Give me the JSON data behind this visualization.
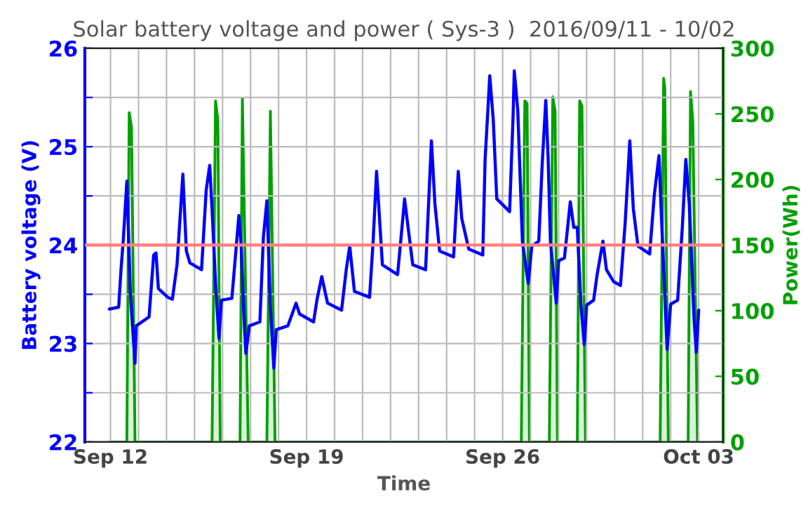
{
  "chart_data": {
    "type": "line",
    "title": "Solar battery voltage and power ( Sys-3 )  2016/09/11 - 10/02",
    "xlabel": "Time",
    "ylabel": "Battery voltage (V)",
    "y2label": "Power(Wh)",
    "xlim": [
      "2016-09-11T02:00",
      "2016-10-03T21:00"
    ],
    "xticks": [
      {
        "value": "2016-09-12",
        "label": "Sep 12"
      },
      {
        "value": "2016-09-13",
        "label": null
      },
      {
        "value": "2016-09-14",
        "label": null
      },
      {
        "value": "2016-09-15",
        "label": null
      },
      {
        "value": "2016-09-16",
        "label": null
      },
      {
        "value": "2016-09-17",
        "label": null
      },
      {
        "value": "2016-09-18",
        "label": null
      },
      {
        "value": "2016-09-19",
        "label": "Sep 19"
      },
      {
        "value": "2016-09-20",
        "label": null
      },
      {
        "value": "2016-09-21",
        "label": null
      },
      {
        "value": "2016-09-22",
        "label": null
      },
      {
        "value": "2016-09-23",
        "label": null
      },
      {
        "value": "2016-09-24",
        "label": null
      },
      {
        "value": "2016-09-25",
        "label": null
      },
      {
        "value": "2016-09-26",
        "label": "Sep 26"
      },
      {
        "value": "2016-09-27",
        "label": null
      },
      {
        "value": "2016-09-28",
        "label": null
      },
      {
        "value": "2016-09-29",
        "label": null
      },
      {
        "value": "2016-09-30",
        "label": null
      },
      {
        "value": "2016-10-01",
        "label": null
      },
      {
        "value": "2016-10-02",
        "label": null
      },
      {
        "value": "2016-10-03",
        "label": "Oct 03"
      }
    ],
    "ylim": [
      22,
      26
    ],
    "yticks": [
      22,
      {
        "value": 22.5,
        "label": null
      },
      23,
      {
        "value": 23.5,
        "label": null
      },
      24,
      {
        "value": 24.5,
        "label": null
      },
      25,
      {
        "value": 25.5,
        "label": null
      },
      26
    ],
    "y2lim": [
      0,
      300
    ],
    "y2ticks": [
      0,
      50,
      100,
      150,
      200,
      250,
      300
    ],
    "grid": true,
    "legend": false,
    "ref_lines": [
      {
        "axis": "y",
        "value": 24,
        "label": null,
        "color": "#ff8080"
      }
    ],
    "series": [
      {
        "color": "#0000ff",
        "x": [
          "2016-09-11T23:00",
          "2016-09-12T07:00",
          "2016-09-12T09:00",
          "2016-09-12T11:00",
          "2016-09-12T14:00",
          "2016-09-12T17:00",
          "2016-09-12T21:00",
          "2016-09-12T22:00",
          "2016-09-13T09:00",
          "2016-09-13T13:00",
          "2016-09-13T15:00",
          "2016-09-13T17:00",
          "2016-09-14T01:00",
          "2016-09-14T05:00",
          "2016-09-14T09:00",
          "2016-09-14T14:00",
          "2016-09-14T17:00",
          "2016-09-14T20:00",
          "2016-09-15T06:00",
          "2016-09-15T10:00",
          "2016-09-15T13:00",
          "2016-09-15T15:00",
          "2016-09-15T18:00",
          "2016-09-15T21:00",
          "2016-09-15T23:00",
          "2016-09-16T08:00",
          "2016-09-16T14:00",
          "2016-09-16T16:00",
          "2016-09-16T18:00",
          "2016-09-16T20:00",
          "2016-09-16T23:00",
          "2016-09-17T08:00",
          "2016-09-17T11:00",
          "2016-09-17T14:00",
          "2016-09-17T17:00",
          "2016-09-17T20:00",
          "2016-09-17T22:00",
          "2016-09-18T08:00",
          "2016-09-18T15:00",
          "2016-09-18T18:00",
          "2016-09-19T06:00",
          "2016-09-19T09:00",
          "2016-09-19T13:00",
          "2016-09-19T18:00",
          "2016-09-20T06:00",
          "2016-09-20T10:00",
          "2016-09-20T13:00",
          "2016-09-20T17:00",
          "2016-09-21T06:00",
          "2016-09-21T09:00",
          "2016-09-21T12:00",
          "2016-09-21T14:00",
          "2016-09-21T17:00",
          "2016-09-22T06:00",
          "2016-09-22T09:00",
          "2016-09-22T12:00",
          "2016-09-22T15:00",
          "2016-09-22T19:00",
          "2016-09-23T06:00",
          "2016-09-23T11:00",
          "2016-09-23T14:00",
          "2016-09-23T18:00",
          "2016-09-24T06:00",
          "2016-09-24T10:00",
          "2016-09-24T13:00",
          "2016-09-24T19:00",
          "2016-09-25T07:00",
          "2016-09-25T09:00",
          "2016-09-25T13:00",
          "2016-09-25T16:00",
          "2016-09-25T19:00",
          "2016-09-26T06:00",
          "2016-09-26T09:00",
          "2016-09-26T10:00",
          "2016-09-26T13:00",
          "2016-09-26T17:00",
          "2016-09-26T22:00",
          "2016-09-27T01:00",
          "2016-09-27T07:00",
          "2016-09-27T10:00",
          "2016-09-27T13:00",
          "2016-09-27T15:00",
          "2016-09-27T17:00",
          "2016-09-27T22:00",
          "2016-09-28T00:00",
          "2016-09-28T05:00",
          "2016-09-28T10:00",
          "2016-09-28T13:00",
          "2016-09-28T16:00",
          "2016-09-28T19:00",
          "2016-09-28T22:00",
          "2016-09-29T00:00",
          "2016-09-29T06:00",
          "2016-09-29T09:00",
          "2016-09-29T14:00",
          "2016-09-29T17:00",
          "2016-09-29T23:00",
          "2016-09-30T05:00",
          "2016-09-30T09:00",
          "2016-09-30T13:00",
          "2016-09-30T16:00",
          "2016-09-30T20:00",
          "2016-10-01T06:00",
          "2016-10-01T10:00",
          "2016-10-01T14:00",
          "2016-10-01T16:00",
          "2016-10-01T21:00",
          "2016-10-02T00:00",
          "2016-10-02T06:00",
          "2016-10-02T10:00",
          "2016-10-02T13:00",
          "2016-10-02T16:00",
          "2016-10-02T20:00",
          "2016-10-02T22:00",
          "2016-10-03T00:00"
        ],
        "values": [
          23.35,
          23.37,
          23.75,
          24.06,
          24.65,
          23.51,
          22.8,
          23.18,
          23.27,
          23.9,
          23.92,
          23.56,
          23.47,
          23.45,
          23.8,
          24.72,
          23.94,
          23.82,
          23.75,
          24.56,
          24.81,
          24.37,
          23.61,
          23.05,
          23.44,
          23.46,
          24.3,
          23.99,
          23.37,
          22.9,
          23.18,
          23.22,
          24.08,
          24.45,
          23.37,
          22.75,
          23.14,
          23.18,
          23.41,
          23.3,
          23.22,
          23.45,
          23.68,
          23.41,
          23.34,
          23.75,
          23.99,
          23.53,
          23.47,
          24.03,
          24.75,
          24.37,
          23.8,
          23.7,
          24.08,
          24.47,
          24.18,
          23.8,
          23.75,
          25.06,
          24.42,
          23.94,
          23.88,
          24.75,
          24.27,
          23.96,
          23.9,
          24.87,
          25.72,
          25.27,
          24.47,
          24.34,
          25.32,
          25.77,
          25.37,
          24.03,
          23.61,
          23.99,
          24.04,
          24.84,
          25.47,
          24.89,
          24.03,
          23.41,
          23.84,
          23.87,
          24.44,
          24.18,
          24.18,
          23.41,
          22.99,
          23.39,
          23.44,
          23.7,
          24.04,
          23.75,
          23.63,
          23.59,
          24.22,
          25.06,
          24.37,
          23.99,
          23.91,
          24.51,
          24.91,
          24.32,
          22.94,
          23.4,
          23.44,
          24.18,
          24.87,
          24.41,
          23.27,
          22.91,
          23.34
        ]
      },
      {
        "type": "area",
        "axis": "y2",
        "color": "#00a000",
        "x": [
          "2016-09-11T23:00",
          "2016-09-12T14:00",
          "2016-09-12T16:00",
          "2016-09-12T18:00",
          "2016-09-12T21:00",
          "2016-09-15T15:00",
          "2016-09-15T18:00",
          "2016-09-15T20:00",
          "2016-09-15T22:00",
          "2016-09-16T15:00",
          "2016-09-16T17:00",
          "2016-09-16T22:00",
          "2016-09-17T14:00",
          "2016-09-17T17:00",
          "2016-09-17T21:00",
          "2016-09-26T16:00",
          "2016-09-26T19:00",
          "2016-09-26T21:00",
          "2016-09-26T23:00",
          "2016-09-27T16:00",
          "2016-09-27T19:00",
          "2016-09-27T21:00",
          "2016-09-27T23:00",
          "2016-09-28T16:00",
          "2016-09-28T18:00",
          "2016-09-28T20:00",
          "2016-09-28T23:00",
          "2016-10-01T15:00",
          "2016-10-01T18:00",
          "2016-10-01T19:00",
          "2016-10-01T22:00",
          "2016-10-02T15:00",
          "2016-10-02T17:00",
          "2016-10-02T19:00",
          "2016-10-02T23:00",
          "2016-10-03T00:00"
        ],
        "values": [
          0,
          0,
          251,
          240,
          0,
          0,
          260,
          245,
          0,
          0,
          262,
          0,
          0,
          252,
          0,
          0,
          260,
          258,
          0,
          0,
          263,
          252,
          0,
          0,
          260,
          256,
          0,
          0,
          277,
          270,
          0,
          0,
          267,
          245,
          0,
          0
        ]
      }
    ]
  }
}
